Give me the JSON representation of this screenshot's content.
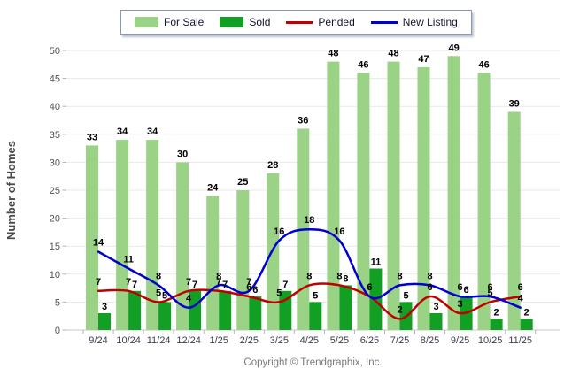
{
  "legend": {
    "items": [
      {
        "label": "For Sale",
        "type": "bar",
        "color": "#9BD386"
      },
      {
        "label": "Sold",
        "type": "bar",
        "color": "#11A023"
      },
      {
        "label": "Pended",
        "type": "line",
        "color": "#C00000"
      },
      {
        "label": "New Listing",
        "type": "line",
        "color": "#0000D0"
      }
    ]
  },
  "footer": {
    "copyright": "Copyright © Trendgraphix, Inc."
  },
  "chart_data": {
    "type": "bar+line",
    "categories": [
      "9/24",
      "10/24",
      "11/24",
      "12/24",
      "1/25",
      "2/25",
      "3/25",
      "4/25",
      "5/25",
      "6/25",
      "7/25",
      "8/25",
      "9/25",
      "10/25",
      "11/25"
    ],
    "series": [
      {
        "name": "For Sale",
        "type": "bar",
        "color": "#9BD386",
        "values": [
          33,
          34,
          34,
          30,
          24,
          25,
          28,
          36,
          48,
          46,
          48,
          47,
          49,
          46,
          39
        ]
      },
      {
        "name": "Sold",
        "type": "bar",
        "color": "#11A023",
        "values": [
          3,
          7,
          5,
          7,
          7,
          6,
          7,
          5,
          8,
          11,
          5,
          3,
          6,
          2,
          2
        ]
      },
      {
        "name": "Pended",
        "type": "line",
        "color": "#C00000",
        "values": [
          7,
          7,
          5,
          7,
          7,
          6,
          5,
          8,
          8,
          6,
          2,
          6,
          3,
          5,
          6
        ]
      },
      {
        "name": "New Listing",
        "type": "line",
        "color": "#0000D0",
        "values": [
          14,
          11,
          8,
          4,
          8,
          7,
          16,
          18,
          16,
          6,
          8,
          8,
          6,
          6,
          4
        ]
      }
    ],
    "title": "",
    "xlabel": "",
    "ylabel": "Number of Homes",
    "ylim": [
      0,
      50
    ],
    "y_tick_step": 5,
    "grid": true,
    "legend_position": "top",
    "data_labels": true
  },
  "colors": {
    "grid": "#e9e9e9",
    "axis": "#c9c9c9",
    "tick": "#b5b5b5",
    "label": "#000000"
  }
}
